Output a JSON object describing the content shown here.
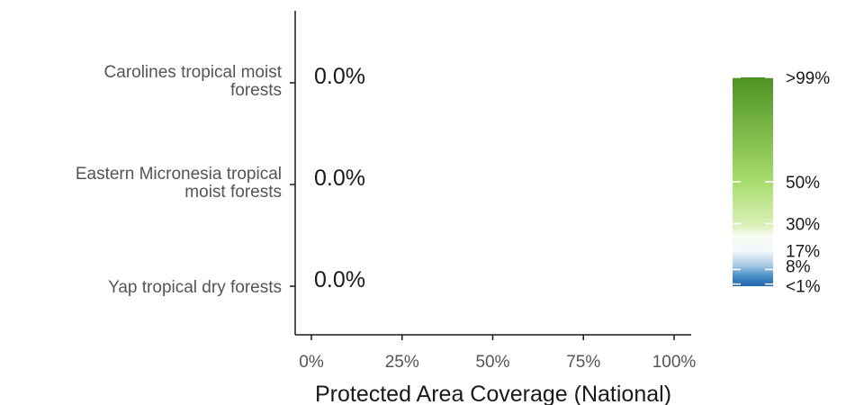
{
  "chart_data": {
    "type": "bar",
    "orientation": "horizontal",
    "categories": [
      [
        "Carolines tropical moist",
        "forests"
      ],
      [
        "Eastern Micronesia tropical",
        "moist forests"
      ],
      [
        "Yap tropical dry forests"
      ]
    ],
    "values": [
      0,
      0,
      0
    ],
    "data_labels": [
      "0.0%",
      "0.0%",
      "0.0%"
    ],
    "xlabel": "Protected Area Coverage (National)",
    "xlim": [
      0,
      100
    ],
    "xticks": [
      0,
      25,
      50,
      75,
      100
    ],
    "xtick_labels": [
      "0%",
      "25%",
      "50%",
      "75%",
      "100%"
    ],
    "grid": false,
    "legend": {
      "placement": "right",
      "type": "colorbar",
      "min": 0,
      "max": 100,
      "labels": [
        {
          "value": 100,
          "text": ">99%"
        },
        {
          "value": 50,
          "text": "50%"
        },
        {
          "value": 30,
          "text": "30%"
        },
        {
          "value": 17,
          "text": "17%"
        },
        {
          "value": 8,
          "text": "8%"
        },
        {
          "value": 1,
          "text": "<1%"
        }
      ],
      "colors": [
        "#2166ac",
        "#6a9fcf",
        "#c6dbef",
        "#f7fcf0",
        "#d9f0b3",
        "#a6d96a",
        "#66b032",
        "#4d9221"
      ]
    }
  }
}
